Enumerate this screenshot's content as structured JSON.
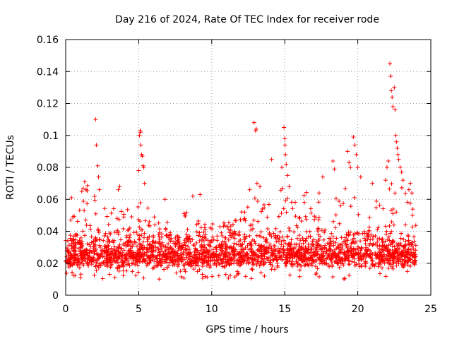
{
  "chart_data": {
    "type": "scatter",
    "title": "Day 216 of 2024, Rate Of TEC Index for receiver rode",
    "xlabel": "GPS time / hours",
    "ylabel": "ROTI / TECUs",
    "xlim": [
      0,
      25
    ],
    "ylim": [
      0,
      0.16
    ],
    "xticks": [
      0,
      5,
      10,
      15,
      20,
      25
    ],
    "xtick_labels": [
      "0",
      "5",
      "10",
      "15",
      "20",
      "25"
    ],
    "yticks": [
      0,
      0.02,
      0.04,
      0.06,
      0.08,
      0.1,
      0.12,
      0.14,
      0.16
    ],
    "ytick_labels": [
      "0",
      "0.02",
      "0.04",
      "0.06",
      "0.08",
      "0.1",
      "0.12",
      "0.14",
      "0.16"
    ],
    "grid": true,
    "marker": "+",
    "color": "#ff0000",
    "series": [
      {
        "name": "ROTI",
        "x_range": [
          0,
          24
        ],
        "typical_band": [
          0.01,
          0.045
        ],
        "envelope": [
          [
            0,
            0.045
          ],
          [
            0.5,
            0.05
          ],
          [
            1.0,
            0.06
          ],
          [
            1.5,
            0.07
          ],
          [
            2.0,
            0.065
          ],
          [
            2.5,
            0.055
          ],
          [
            3.0,
            0.055
          ],
          [
            3.5,
            0.06
          ],
          [
            4.0,
            0.06
          ],
          [
            4.5,
            0.05
          ],
          [
            5.0,
            0.06
          ],
          [
            5.5,
            0.06
          ],
          [
            6.0,
            0.05
          ],
          [
            6.5,
            0.045
          ],
          [
            7.0,
            0.05
          ],
          [
            7.5,
            0.05
          ],
          [
            8.0,
            0.055
          ],
          [
            8.5,
            0.058
          ],
          [
            9.0,
            0.05
          ],
          [
            9.5,
            0.05
          ],
          [
            10.0,
            0.05
          ],
          [
            10.5,
            0.05
          ],
          [
            11.0,
            0.05
          ],
          [
            11.5,
            0.05
          ],
          [
            12.0,
            0.055
          ],
          [
            12.5,
            0.06
          ],
          [
            13.0,
            0.065
          ],
          [
            13.5,
            0.06
          ],
          [
            14.0,
            0.06
          ],
          [
            14.5,
            0.065
          ],
          [
            15.0,
            0.07
          ],
          [
            15.5,
            0.065
          ],
          [
            16.0,
            0.065
          ],
          [
            16.5,
            0.065
          ],
          [
            17.0,
            0.065
          ],
          [
            17.5,
            0.065
          ],
          [
            18.0,
            0.07
          ],
          [
            18.5,
            0.07
          ],
          [
            19.0,
            0.07
          ],
          [
            19.5,
            0.065
          ],
          [
            20.0,
            0.065
          ],
          [
            20.5,
            0.06
          ],
          [
            21.0,
            0.06
          ],
          [
            21.5,
            0.065
          ],
          [
            22.0,
            0.065
          ],
          [
            22.5,
            0.075
          ],
          [
            23.0,
            0.07
          ],
          [
            23.5,
            0.06
          ],
          [
            24.0,
            0.05
          ]
        ],
        "spikes": [
          [
            0.4,
            0.061
          ],
          [
            1.1,
            0.065
          ],
          [
            1.2,
            0.067
          ],
          [
            1.3,
            0.071
          ],
          [
            1.4,
            0.066
          ],
          [
            2.05,
            0.11
          ],
          [
            2.1,
            0.094
          ],
          [
            2.2,
            0.081
          ],
          [
            2.25,
            0.074
          ],
          [
            2.3,
            0.066
          ],
          [
            3.6,
            0.066
          ],
          [
            3.7,
            0.068
          ],
          [
            5.0,
            0.078
          ],
          [
            5.05,
            0.1
          ],
          [
            5.1,
            0.103
          ],
          [
            5.12,
            0.102
          ],
          [
            5.15,
            0.094
          ],
          [
            5.2,
            0.088
          ],
          [
            5.25,
            0.087
          ],
          [
            5.3,
            0.081
          ],
          [
            5.35,
            0.08
          ],
          [
            5.4,
            0.07
          ],
          [
            6.8,
            0.06
          ],
          [
            8.7,
            0.062
          ],
          [
            9.2,
            0.063
          ],
          [
            12.6,
            0.066
          ],
          [
            12.9,
            0.108
          ],
          [
            13.0,
            0.103
          ],
          [
            13.05,
            0.104
          ],
          [
            13.1,
            0.07
          ],
          [
            13.3,
            0.068
          ],
          [
            14.1,
            0.085
          ],
          [
            14.8,
            0.08
          ],
          [
            14.95,
            0.105
          ],
          [
            15.0,
            0.098
          ],
          [
            15.02,
            0.094
          ],
          [
            15.05,
            0.088
          ],
          [
            15.1,
            0.082
          ],
          [
            15.2,
            0.075
          ],
          [
            15.3,
            0.068
          ],
          [
            17.6,
            0.074
          ],
          [
            18.3,
            0.084
          ],
          [
            18.4,
            0.079
          ],
          [
            19.3,
            0.09
          ],
          [
            19.4,
            0.083
          ],
          [
            19.5,
            0.08
          ],
          [
            19.7,
            0.099
          ],
          [
            19.8,
            0.094
          ],
          [
            19.9,
            0.088
          ],
          [
            20.0,
            0.08
          ],
          [
            20.2,
            0.074
          ],
          [
            21.0,
            0.07
          ],
          [
            21.9,
            0.072
          ],
          [
            22.0,
            0.08
          ],
          [
            22.1,
            0.084
          ],
          [
            22.2,
            0.145
          ],
          [
            22.25,
            0.137
          ],
          [
            22.3,
            0.128
          ],
          [
            22.35,
            0.124
          ],
          [
            22.4,
            0.118
          ],
          [
            22.5,
            0.13
          ],
          [
            22.55,
            0.116
          ],
          [
            22.6,
            0.1
          ],
          [
            22.65,
            0.096
          ],
          [
            22.7,
            0.092
          ],
          [
            22.75,
            0.088
          ],
          [
            22.8,
            0.085
          ],
          [
            22.9,
            0.08
          ],
          [
            23.0,
            0.077
          ],
          [
            23.1,
            0.072
          ],
          [
            23.5,
            0.066
          ],
          [
            23.6,
            0.07
          ],
          [
            23.7,
            0.064
          ]
        ]
      }
    ]
  }
}
